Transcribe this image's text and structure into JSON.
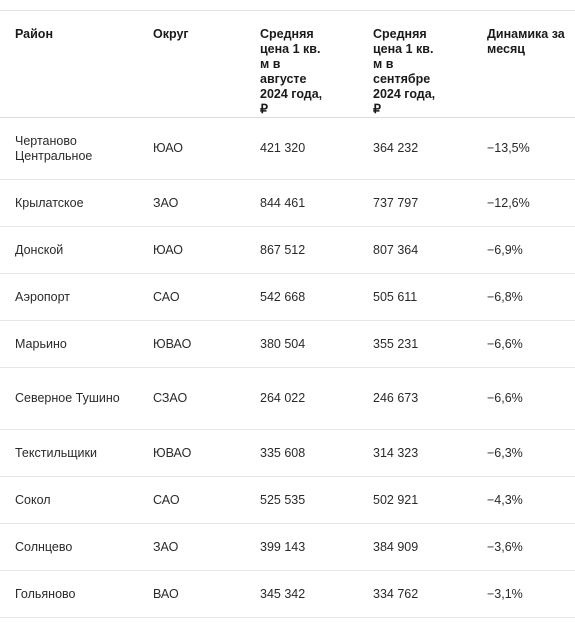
{
  "table": {
    "headers": [
      "Район",
      "Округ",
      "Средняя цена 1 кв. м в августе 2024 года, ₽",
      "Средняя цена 1 кв. м в сентябре 2024 года, ₽",
      "Динамика за месяц"
    ],
    "rows": [
      [
        "Чертаново Центральное",
        "ЮАО",
        "421 320",
        "364 232",
        "−13,5%"
      ],
      [
        "Крылатское",
        "ЗАО",
        "844 461",
        "737 797",
        "−12,6%"
      ],
      [
        "Донской",
        "ЮАО",
        "867 512",
        "807 364",
        "−6,9%"
      ],
      [
        "Аэропорт",
        "САО",
        "542 668",
        "505 611",
        "−6,8%"
      ],
      [
        "Марьино",
        "ЮВАО",
        "380 504",
        "355 231",
        "−6,6%"
      ],
      [
        "Северное Тушино",
        "СЗАО",
        "264 022",
        "246 673",
        "−6,6%"
      ],
      [
        "Текстильщики",
        "ЮВАО",
        "335 608",
        "314 323",
        "−6,3%"
      ],
      [
        "Сокол",
        "САО",
        "525 535",
        "502 921",
        "−4,3%"
      ],
      [
        "Солнцево",
        "ЗАО",
        "399 143",
        "384 909",
        "−3,6%"
      ],
      [
        "Гольяново",
        "ВАО",
        "345 342",
        "334 762",
        "−3,1%"
      ]
    ]
  }
}
